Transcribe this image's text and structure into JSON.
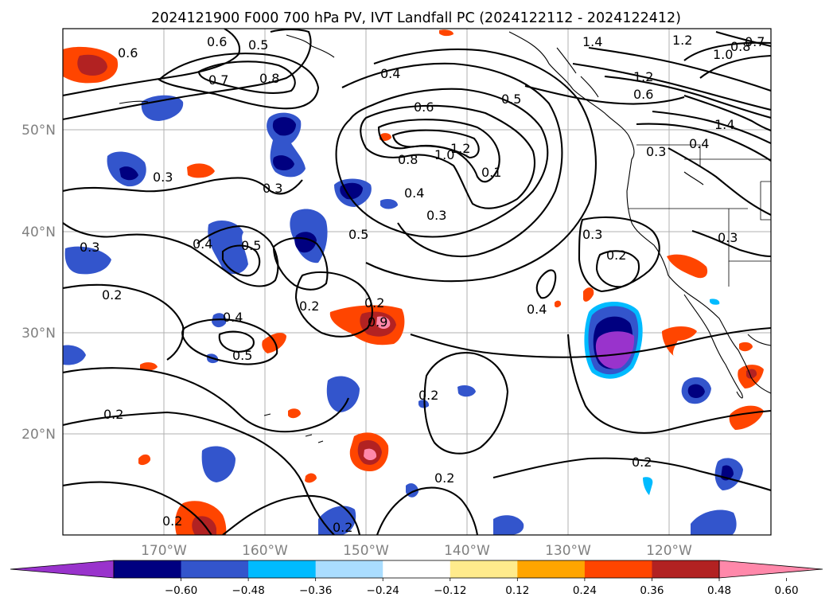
{
  "title": "2024121900 F000 700 hPa PV, IVT Landfall PC (2024122112 - 2024122412)",
  "lat_labels": [
    "50°N",
    "40°N",
    "30°N",
    "20°N"
  ],
  "lon_labels": [
    "170°W",
    "160°W",
    "150°W",
    "140°W",
    "130°W",
    "120°W"
  ],
  "colorbar": {
    "colors": [
      "#9933cc",
      "#000080",
      "#3355cc",
      "#00bbff",
      "#aaddff",
      "#ffffff",
      "#ffeb8c",
      "#ffa500",
      "#ff4500",
      "#b22222",
      "#ff88aa"
    ],
    "under_color": "#9933cc",
    "over_color": "#ff88aa",
    "tick_labels": [
      "−0.60",
      "−0.48",
      "−0.36",
      "−0.24",
      "−0.12",
      "0.12",
      "0.24",
      "0.36",
      "0.48",
      "0.60"
    ]
  },
  "contour_labels": [
    "0.6",
    "0.6",
    "0.5",
    "0.7",
    "0.8",
    "0.4",
    "0.6",
    "0.5",
    "1.0",
    "0.8",
    "1.2",
    "0.1",
    "0.4",
    "0.3",
    "0.5",
    "1.4",
    "1.2",
    "1.0",
    "0.8",
    "0.7",
    "1.2",
    "0.6",
    "1.4",
    "0.3",
    "0.4",
    "0.3",
    "0.3",
    "0.4",
    "0.5",
    "0.3",
    "0.2",
    "0.2",
    "0.4",
    "0.5",
    "0.2",
    "0.9",
    "0.3",
    "0.2",
    "0.3",
    "0.4",
    "0.2",
    "0.2",
    "0.2",
    "0.2",
    "0.2",
    "0.2"
  ]
}
